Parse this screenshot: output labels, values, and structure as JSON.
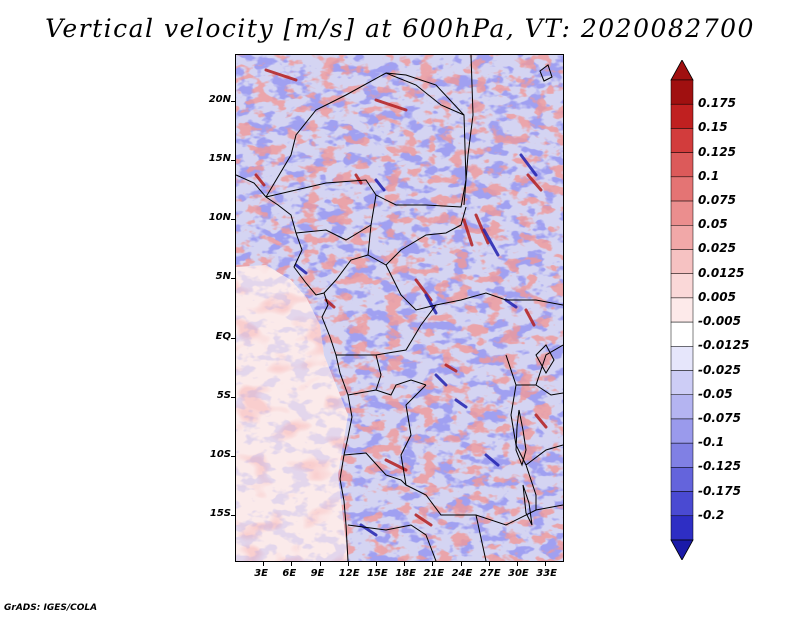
{
  "title": "Vertical velocity [m/s] at 600hPa, VT: 2020082700",
  "footer": "GrADS: IGES/COLA",
  "map": {
    "lat_range": [
      -19,
      24
    ],
    "lon_range": [
      0,
      35
    ],
    "lat_ticks": [
      {
        "value": 20,
        "label": "20N"
      },
      {
        "value": 15,
        "label": "15N"
      },
      {
        "value": 10,
        "label": "10N"
      },
      {
        "value": 5,
        "label": "5N"
      },
      {
        "value": 0,
        "label": "EQ"
      },
      {
        "value": -5,
        "label": "5S"
      },
      {
        "value": -10,
        "label": "10S"
      },
      {
        "value": -15,
        "label": "15S"
      }
    ],
    "lon_ticks": [
      {
        "value": 3,
        "label": "3E"
      },
      {
        "value": 6,
        "label": "6E"
      },
      {
        "value": 9,
        "label": "9E"
      },
      {
        "value": 12,
        "label": "12E"
      },
      {
        "value": 15,
        "label": "15E"
      },
      {
        "value": 18,
        "label": "18E"
      },
      {
        "value": 21,
        "label": "21E"
      },
      {
        "value": 24,
        "label": "24E"
      },
      {
        "value": 27,
        "label": "27E"
      },
      {
        "value": 30,
        "label": "30E"
      },
      {
        "value": 33,
        "label": "33E"
      }
    ]
  },
  "colorbar": {
    "levels": [
      {
        "label": "0.175",
        "color": "#c02020"
      },
      {
        "label": "0.15",
        "color": "#d23c3c"
      },
      {
        "label": "0.125",
        "color": "#dc5a5a"
      },
      {
        "label": "0.1",
        "color": "#e47474"
      },
      {
        "label": "0.075",
        "color": "#eb8e8e"
      },
      {
        "label": "0.05",
        "color": "#f1a8a8"
      },
      {
        "label": "0.025",
        "color": "#f6c2c2"
      },
      {
        "label": "0.0125",
        "color": "#fad8d8"
      },
      {
        "label": "0.005",
        "color": "#fdeaea"
      },
      {
        "label": "-0.005",
        "color": "#ffffff"
      },
      {
        "label": "-0.0125",
        "color": "#e6e6fb"
      },
      {
        "label": "-0.025",
        "color": "#cdcdf6"
      },
      {
        "label": "-0.05",
        "color": "#b4b4f1"
      },
      {
        "label": "-0.075",
        "color": "#9a9aec"
      },
      {
        "label": "-0.1",
        "color": "#8080e4"
      },
      {
        "label": "-0.125",
        "color": "#6464dc"
      },
      {
        "label": "-0.175",
        "color": "#4a4ad2"
      },
      {
        "label": "-0.2",
        "color": "#2e2ec4"
      }
    ],
    "top_color": "#a01010",
    "bottom_color": "#1a1aa8"
  },
  "field": {
    "ocean_color": "#fbeaea",
    "land_color": "#d4d4f2",
    "positive_color": "#e46a6a",
    "negative_color": "#6e6ee0",
    "strong_positive_color": "#b41e1e",
    "strong_negative_color": "#2222b0"
  }
}
